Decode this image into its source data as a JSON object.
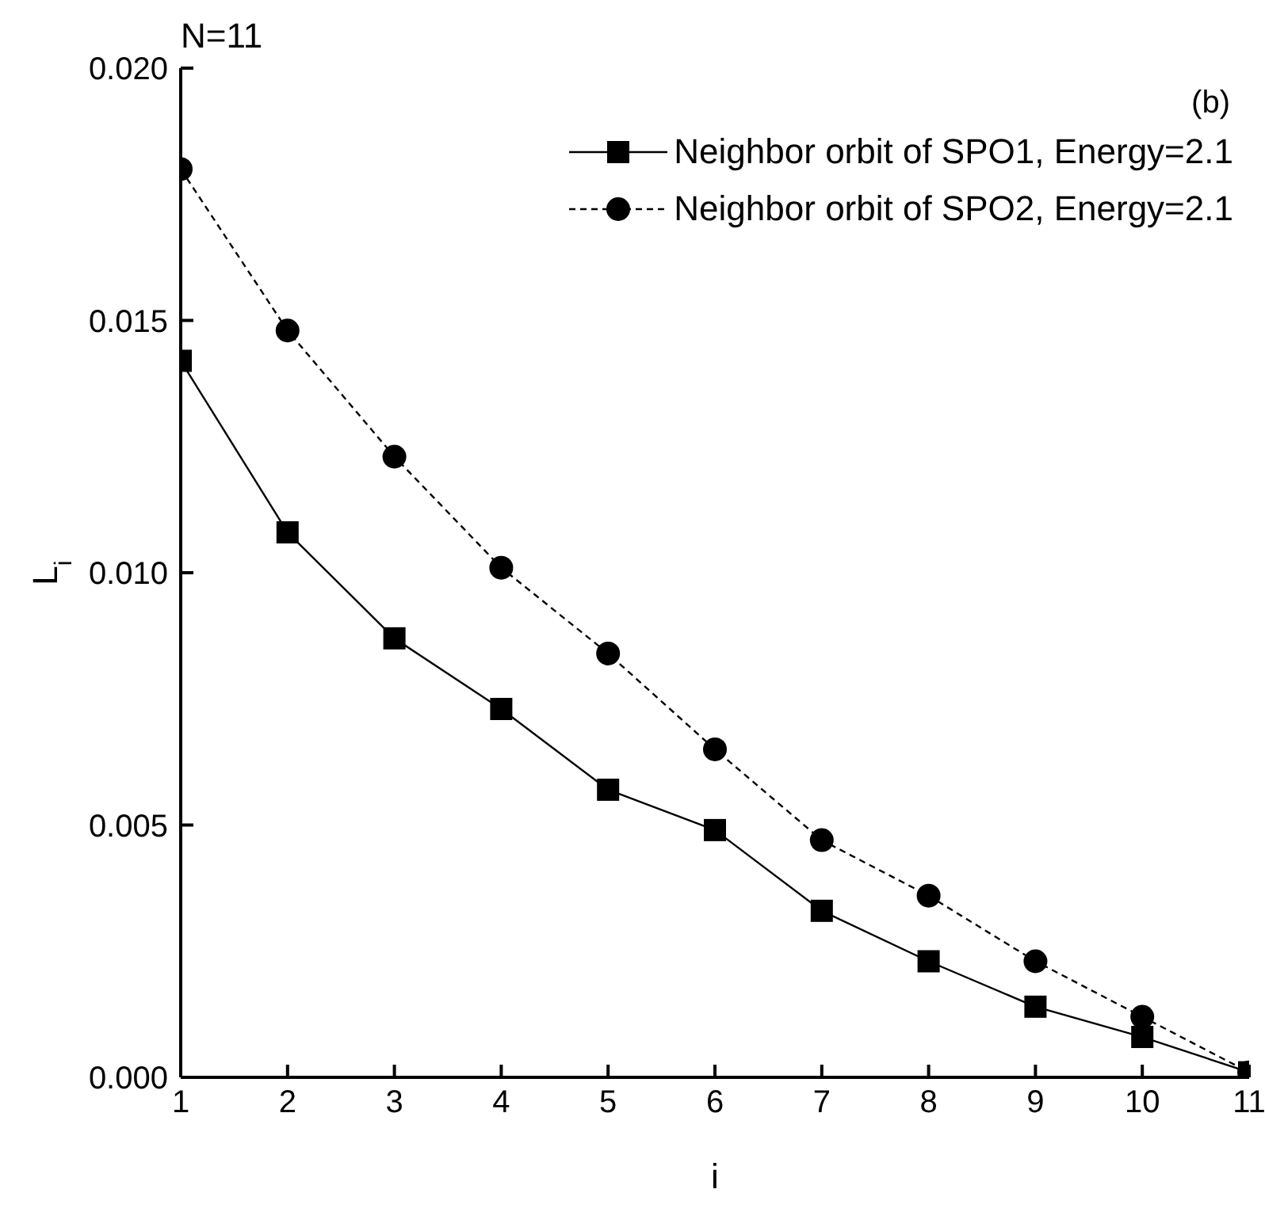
{
  "chart_data": {
    "type": "line",
    "title": "N=11",
    "xlabel": "i",
    "ylabel": "L$_{i}$",
    "annotations": [
      "(b)"
    ],
    "x": [
      1,
      2,
      3,
      4,
      5,
      6,
      7,
      8,
      9,
      10,
      11
    ],
    "series": [
      {
        "name": "Neighbor orbit of SPO1, Energy=2.1",
        "color": "#000000",
        "marker": "square",
        "line_style": "solid",
        "values": [
          0.0142,
          0.0108,
          0.0087,
          0.0073,
          0.0057,
          0.0049,
          0.0033,
          0.0023,
          0.0014,
          0.0008,
          0.0001
        ]
      },
      {
        "name": "Neighbor orbit of SPO2, Energy=2.1",
        "color": "#000000",
        "marker": "circle",
        "line_style": "dashed",
        "values": [
          0.018,
          0.0148,
          0.0123,
          0.0101,
          0.0084,
          0.0065,
          0.0047,
          0.0036,
          0.0023,
          0.0012,
          0.0001
        ]
      }
    ],
    "xlim": [
      1,
      11
    ],
    "xticks": [
      1,
      2,
      3,
      4,
      5,
      6,
      7,
      8,
      9,
      10,
      11
    ],
    "ylim": [
      0,
      0.02
    ],
    "yticks": [
      {
        "value": 0,
        "label": "0.000"
      },
      {
        "value": 0.005,
        "label": "0.005"
      },
      {
        "value": 0.01,
        "label": "0.010"
      },
      {
        "value": 0.015,
        "label": "0.015"
      },
      {
        "value": 0.02,
        "label": "0.020"
      }
    ],
    "legend": "top right"
  }
}
